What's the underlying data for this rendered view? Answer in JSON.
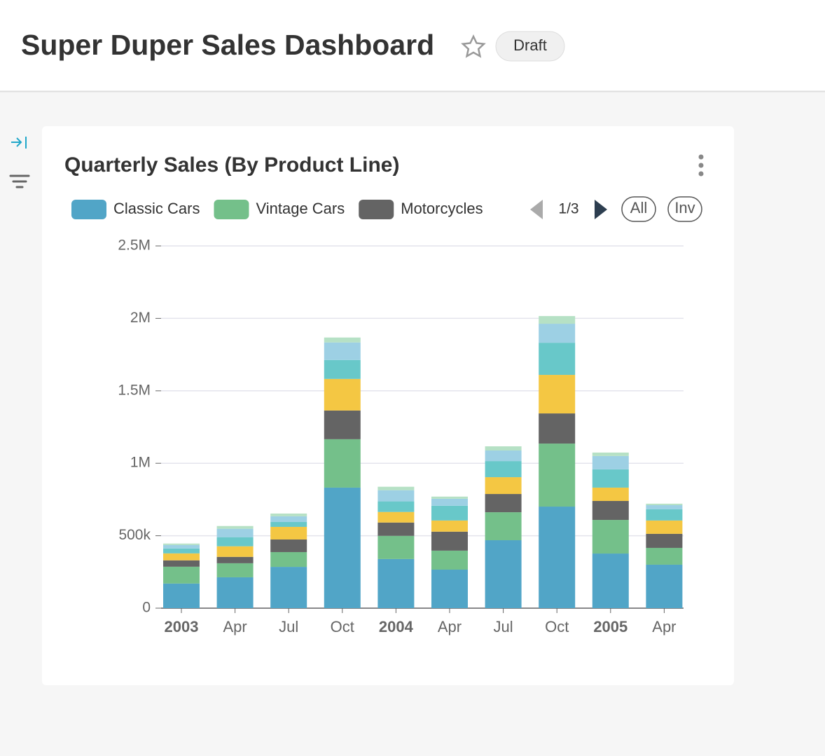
{
  "header": {
    "title": "Super Duper Sales Dashboard",
    "status": "Draft"
  },
  "chart_data": {
    "type": "bar",
    "stacked": true,
    "title": "Quarterly Sales (By Product Line)",
    "categories": [
      "2003",
      "Apr",
      "Jul",
      "Oct",
      "2004",
      "Apr",
      "Jul",
      "Oct",
      "2005",
      "Apr"
    ],
    "series": [
      {
        "name": "Classic Cars",
        "color": "#51a5c7",
        "values": [
          170000,
          213000,
          285000,
          832000,
          339000,
          266000,
          469000,
          701000,
          377000,
          300000
        ]
      },
      {
        "name": "Vintage Cars",
        "color": "#74c08a",
        "values": [
          116000,
          97000,
          102000,
          334000,
          160000,
          131000,
          193000,
          435000,
          232000,
          116000
        ]
      },
      {
        "name": "Motorcycles",
        "color": "#646464",
        "values": [
          44000,
          44000,
          87000,
          198000,
          92000,
          131000,
          126000,
          208000,
          131000,
          97000
        ]
      },
      {
        "color": "#f4c743",
        "values": [
          48000,
          73000,
          87000,
          218000,
          73000,
          77000,
          116000,
          266000,
          92000,
          92000
        ]
      },
      {
        "color": "#68c8c9",
        "values": [
          34000,
          63000,
          34000,
          131000,
          73000,
          102000,
          111000,
          222000,
          126000,
          77000
        ]
      },
      {
        "color": "#9dd0e4",
        "values": [
          24000,
          58000,
          39000,
          121000,
          77000,
          48000,
          73000,
          131000,
          92000,
          29000
        ]
      },
      {
        "color": "#b6e1c5",
        "values": [
          10000,
          19000,
          19000,
          34000,
          24000,
          15000,
          29000,
          53000,
          24000,
          10000
        ]
      }
    ],
    "ylim": [
      0,
      2500000
    ],
    "yticks": [
      0,
      {
        "value": 500000,
        "label": "500k"
      },
      {
        "value": 1000000,
        "label": "1M"
      },
      {
        "value": 1500000,
        "label": "1.5M"
      },
      {
        "value": 2000000,
        "label": "2M"
      },
      {
        "value": 2500000,
        "label": "2.5M"
      }
    ],
    "grid": true,
    "legend": {
      "page": "1/3",
      "buttons": [
        "All",
        "Inv"
      ]
    }
  }
}
